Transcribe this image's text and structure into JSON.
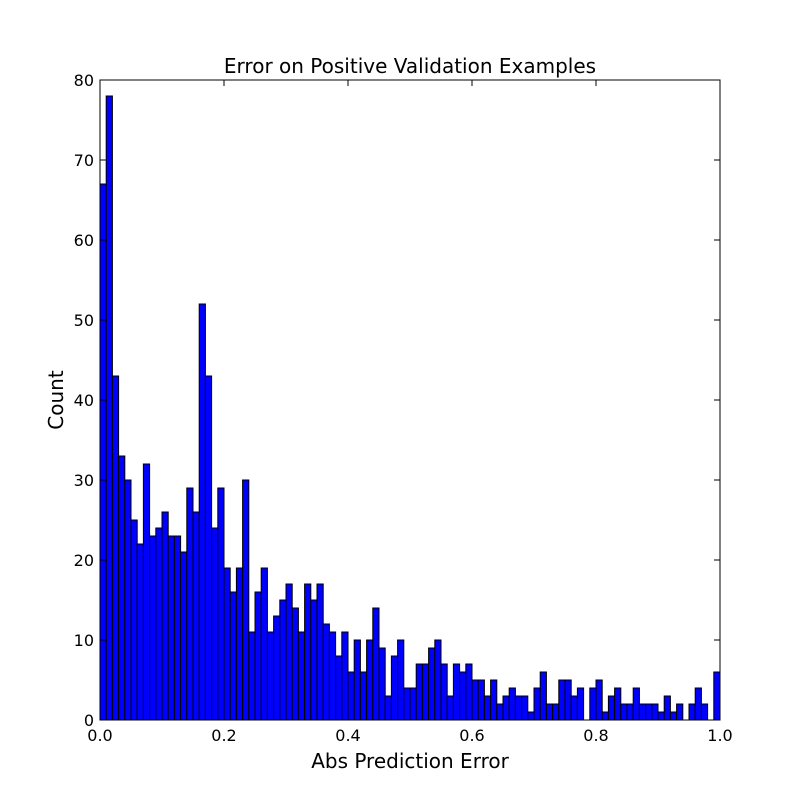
{
  "chart_data": {
    "type": "bar",
    "title": "Error on Positive Validation Examples",
    "xlabel": "Abs Prediction Error",
    "ylabel": "Count",
    "xlim": [
      0.0,
      1.0
    ],
    "ylim": [
      0,
      80
    ],
    "x_ticks": [
      "0.0",
      "0.2",
      "0.4",
      "0.6",
      "0.8",
      "1.0"
    ],
    "y_ticks": [
      "0",
      "10",
      "20",
      "30",
      "40",
      "50",
      "60",
      "70",
      "80"
    ],
    "bin_width": 0.01,
    "bar_color": "#0000ff",
    "edge_color": "#000000",
    "grid": false,
    "values": [
      67,
      78,
      43,
      33,
      30,
      25,
      22,
      32,
      23,
      24,
      26,
      23,
      23,
      21,
      29,
      26,
      52,
      43,
      24,
      29,
      19,
      16,
      19,
      30,
      11,
      16,
      19,
      11,
      13,
      15,
      17,
      14,
      11,
      17,
      15,
      17,
      12,
      11,
      8,
      11,
      6,
      10,
      6,
      10,
      14,
      9,
      3,
      8,
      10,
      4,
      4,
      7,
      7,
      9,
      10,
      7,
      3,
      7,
      6,
      7,
      5,
      5,
      3,
      5,
      2,
      3,
      4,
      3,
      3,
      1,
      4,
      6,
      2,
      2,
      5,
      5,
      3,
      4,
      0,
      4,
      5,
      1,
      3,
      4,
      2,
      2,
      4,
      2,
      2,
      2,
      1,
      3,
      1,
      2,
      0,
      2,
      4,
      2,
      0,
      6
    ]
  }
}
